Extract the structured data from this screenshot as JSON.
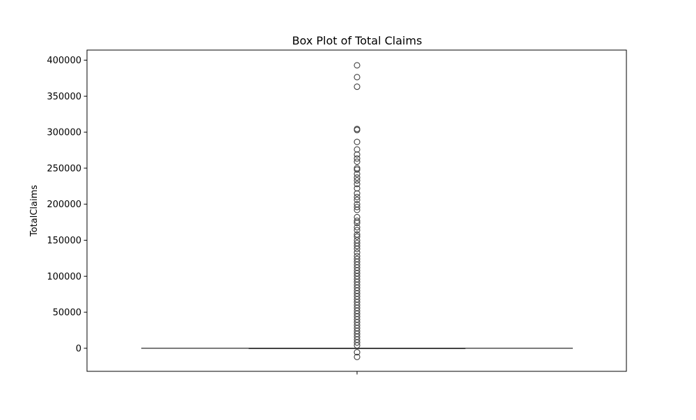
{
  "chart_data": {
    "type": "box",
    "title": "Box Plot of Total Claims",
    "xlabel": "",
    "ylabel": "TotalClaims",
    "ylim": [
      -32000,
      414000
    ],
    "yticks": [
      0,
      50000,
      100000,
      150000,
      200000,
      250000,
      300000,
      350000,
      400000
    ],
    "ytick_labels": [
      "0",
      "50000",
      "100000",
      "150000",
      "200000",
      "250000",
      "300000",
      "350000",
      "400000"
    ],
    "grid": false,
    "box": {
      "whisker_low": 0,
      "q1": 0,
      "median": 0,
      "q3": 0,
      "whisker_high": 0,
      "box_color": "#1f77b4",
      "line_color": "#3f3f3f"
    },
    "outliers": [
      392800,
      376400,
      363100,
      304500,
      303000,
      286500,
      276000,
      269000,
      263500,
      259000,
      250000,
      248000,
      242000,
      237000,
      233000,
      228000,
      222000,
      215000,
      210000,
      206000,
      200000,
      196000,
      192000,
      182000,
      177000,
      174000,
      168000,
      164000,
      158000,
      155000,
      150000,
      146000,
      142000,
      138000,
      133000,
      128000,
      124000,
      120000,
      116000,
      112000,
      108000,
      104000,
      100000,
      96000,
      92000,
      88000,
      84000,
      80000,
      76000,
      72000,
      68000,
      64000,
      60000,
      56000,
      52000,
      48000,
      44000,
      40000,
      36000,
      32000,
      28000,
      24000,
      20000,
      16000,
      12000,
      8000,
      4000,
      -5500,
      -12000
    ]
  }
}
